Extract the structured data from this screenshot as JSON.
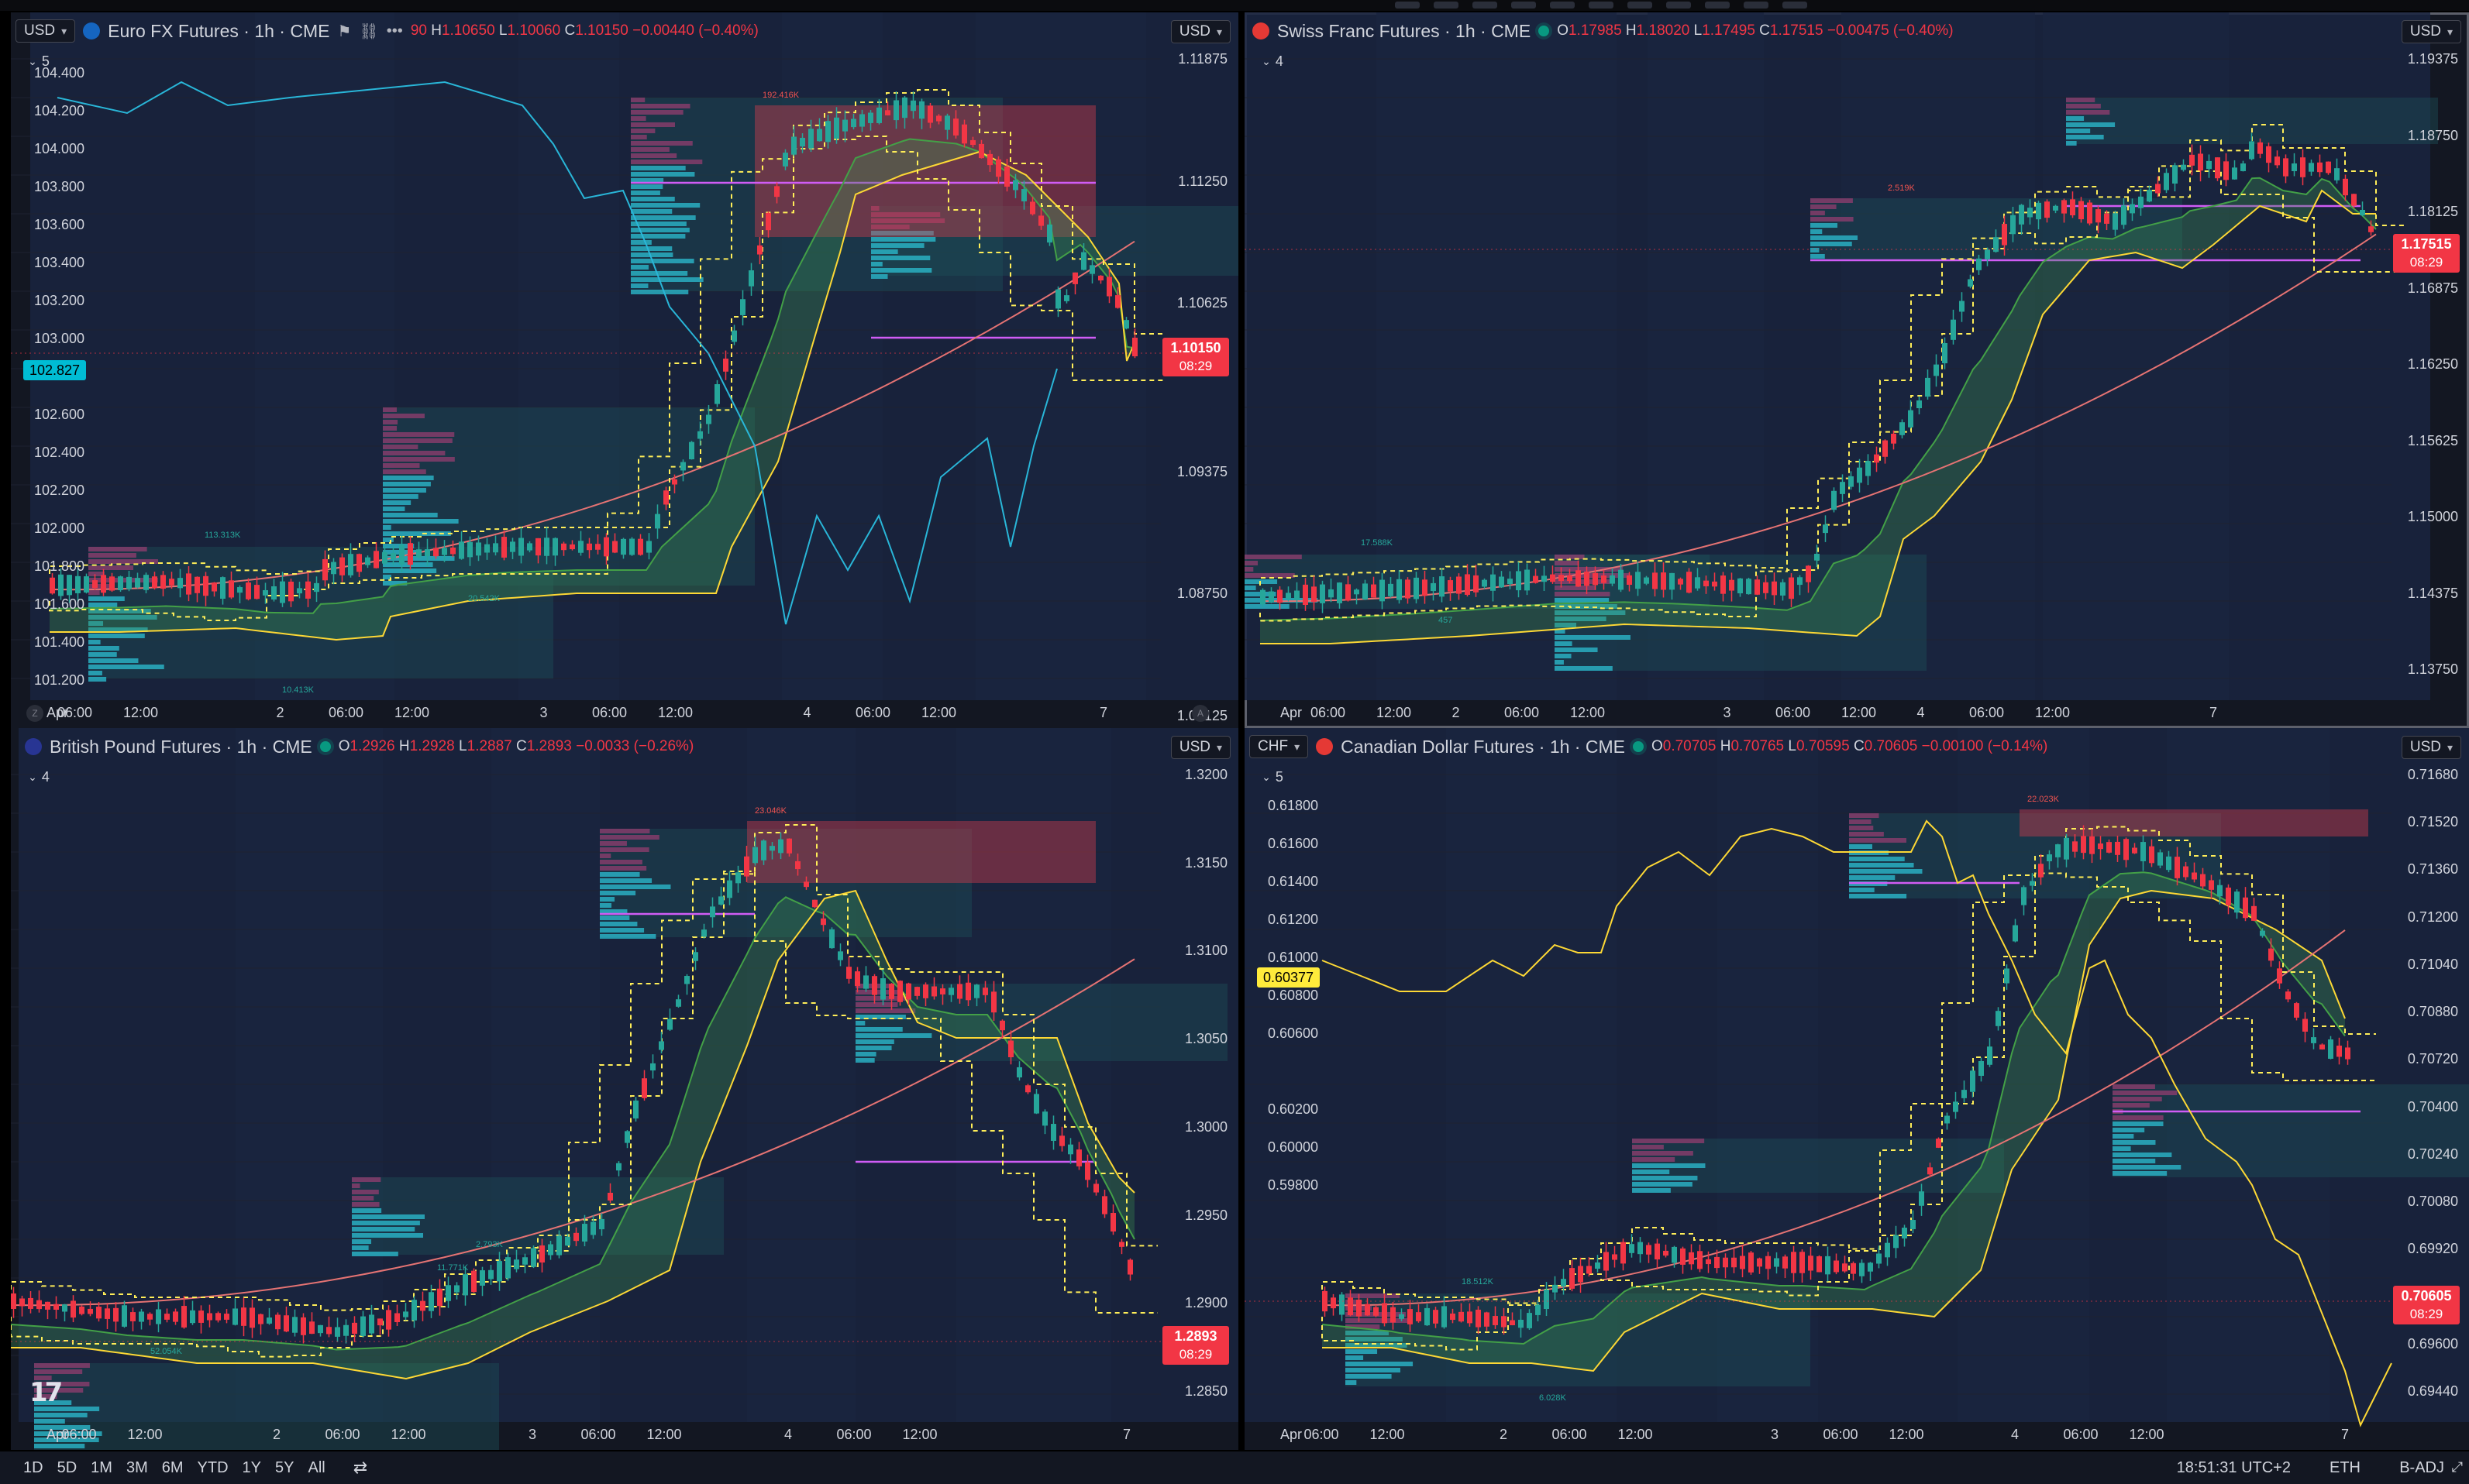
{
  "panels": [
    {
      "id": "eur",
      "currency": "USD",
      "title": "Euro FX Futures · 1h · CME",
      "ohlc": {
        "open_prefix": "",
        "open": "90",
        "high": "1.10650",
        "low": "1.10060",
        "close": "1.10150",
        "change": "−0.00440 (−0.40%)"
      },
      "collapse_count": "5",
      "right_currency": "USD",
      "price_labels": [
        "1.11875",
        "1.11250",
        "1.10625",
        "1.09375",
        "1.08750",
        "1.08125"
      ],
      "left_labels": [
        "104.400",
        "104.200",
        "104.000",
        "103.800",
        "103.600",
        "103.400",
        "103.200",
        "103.000",
        "102.600",
        "102.400",
        "102.200",
        "102.000",
        "101.800",
        "101.600",
        "101.400",
        "101.200"
      ],
      "left_badge": "102.827",
      "left_badge_color": "#00bcd4",
      "last_price": "1.10150",
      "countdown": "08:29",
      "time_labels": [
        "Apr",
        "06:00",
        "12:00",
        "2",
        "06:00",
        "12:00",
        "3",
        "06:00",
        "12:00",
        "4",
        "06:00",
        "12:00",
        "7"
      ],
      "corner_left": "Z",
      "corner_right": "A",
      "vp_labels": [
        "113.313K",
        "192.416K",
        "10.413K",
        "20.542K"
      ]
    },
    {
      "id": "chf",
      "currency": "",
      "title": "Swiss Franc Futures · 1h · CME",
      "ohlc": {
        "open": "1.17985",
        "high": "1.18020",
        "low": "1.17495",
        "close": "1.17515",
        "change": "−0.00475 (−0.40%)"
      },
      "collapse_count": "4",
      "right_currency": "USD",
      "price_labels": [
        "1.19375",
        "1.18750",
        "1.18125",
        "1.16875",
        "1.16250",
        "1.15625",
        "1.15000",
        "1.14375",
        "1.13750"
      ],
      "left_labels": [],
      "last_price": "1.17515",
      "countdown": "08:29",
      "time_labels": [
        "Apr",
        "06:00",
        "12:00",
        "2",
        "06:00",
        "12:00",
        "3",
        "06:00",
        "12:00",
        "4",
        "06:00",
        "12:00",
        "7"
      ],
      "vp_labels": [
        "17.588K",
        "2.519K",
        "457"
      ]
    },
    {
      "id": "gbp",
      "currency": "",
      "title": "British Pound Futures · 1h · CME",
      "ohlc": {
        "open": "1.2926",
        "high": "1.2928",
        "low": "1.2887",
        "close": "1.2893",
        "change": "−0.0033 (−0.26%)"
      },
      "collapse_count": "4",
      "right_currency": "USD",
      "price_labels": [
        "1.3200",
        "1.3150",
        "1.3100",
        "1.3050",
        "1.3000",
        "1.2950",
        "1.2900",
        "1.2850"
      ],
      "left_labels": [],
      "last_price": "1.2893",
      "countdown": "08:29",
      "time_labels": [
        "Apr",
        "06:00",
        "12:00",
        "2",
        "06:00",
        "12:00",
        "3",
        "06:00",
        "12:00",
        "4",
        "06:00",
        "12:00",
        "7"
      ],
      "vp_labels": [
        "52.054K",
        "23.046K",
        "11.169K",
        "11.771K",
        "2.793K"
      ]
    },
    {
      "id": "cad",
      "currency": "CHF",
      "title": "Canadian Dollar Futures · 1h · CME",
      "ohlc": {
        "open": "0.70705",
        "high": "0.70765",
        "low": "0.70595",
        "close": "0.70605",
        "change": "−0.00100 (−0.14%)"
      },
      "collapse_count": "5",
      "right_currency": "USD",
      "price_labels": [
        "0.71680",
        "0.71520",
        "0.71360",
        "0.71200",
        "0.71040",
        "0.70880",
        "0.70720",
        "0.70400",
        "0.70240",
        "0.70080",
        "0.69920",
        "0.69760",
        "0.69600",
        "0.69440"
      ],
      "left_labels": [
        "0.61800",
        "0.61600",
        "0.61400",
        "0.61200",
        "0.61000",
        "0.60800",
        "0.60600",
        "0.60200",
        "0.60000",
        "0.59800"
      ],
      "left_badge": "0.60377",
      "left_badge_color": "#ffeb3b",
      "last_price": "0.70605",
      "countdown": "08:29",
      "time_labels": [
        "Apr",
        "06:00",
        "12:00",
        "2",
        "06:00",
        "12:00",
        "3",
        "06:00",
        "12:00",
        "4",
        "06:00",
        "12:00",
        "7"
      ],
      "vp_labels": [
        "18.512K",
        "22.023K",
        "6.028K"
      ]
    }
  ],
  "bottom_bar": {
    "timeframes": [
      "1D",
      "5D",
      "1M",
      "3M",
      "6M",
      "YTD",
      "1Y",
      "5Y",
      "All"
    ],
    "clock": "18:51:31 UTC+2",
    "session": "ETH",
    "adjust": "B-ADJ"
  },
  "colors": {
    "up": "#26a69a",
    "down": "#f23645",
    "bg": "#131722",
    "accent_cyan": "#00bcd4",
    "accent_yellow": "#ffeb3b"
  }
}
